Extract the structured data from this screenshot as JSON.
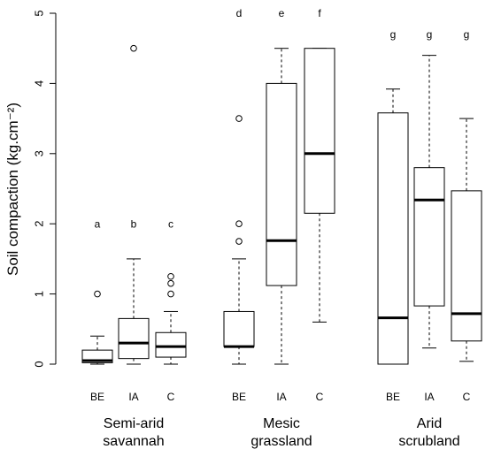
{
  "chart_data": {
    "type": "boxplot",
    "ylabel": "Soil compaction (kg.cm⁻²)",
    "ylim": [
      0,
      5
    ],
    "yticks": [
      "0",
      "1",
      "2",
      "3",
      "4",
      "5"
    ],
    "groups": [
      {
        "label_lines": [
          "Semi-arid",
          "savannah"
        ],
        "categories": [
          "BE",
          "IA",
          "C"
        ]
      },
      {
        "label_lines": [
          "Mesic",
          "grassland"
        ],
        "categories": [
          "BE",
          "IA",
          "C"
        ]
      },
      {
        "label_lines": [
          "Arid",
          "scrubland"
        ],
        "categories": [
          "BE",
          "IA",
          "C"
        ]
      }
    ],
    "boxes": [
      {
        "group": 0,
        "category": "BE",
        "letter": "a",
        "min": 0.0,
        "q1": 0.02,
        "median": 0.05,
        "q3": 0.2,
        "max": 0.4,
        "outliers": [
          1.0
        ]
      },
      {
        "group": 0,
        "category": "IA",
        "letter": "b",
        "min": 0.0,
        "q1": 0.08,
        "median": 0.3,
        "q3": 0.65,
        "max": 1.5,
        "outliers": [
          4.5
        ]
      },
      {
        "group": 0,
        "category": "C",
        "letter": "c",
        "min": 0.0,
        "q1": 0.1,
        "median": 0.25,
        "q3": 0.45,
        "max": 0.75,
        "outliers": [
          1.0,
          1.15,
          1.25
        ]
      },
      {
        "group": 1,
        "category": "BE",
        "letter": "d",
        "min": 0.0,
        "q1": 0.25,
        "median": 0.25,
        "q3": 0.75,
        "max": 1.5,
        "outliers": [
          1.75,
          2.0,
          3.5
        ]
      },
      {
        "group": 1,
        "category": "IA",
        "letter": "e",
        "min": 0.0,
        "q1": 1.12,
        "median": 1.76,
        "q3": 4.0,
        "max": 4.5,
        "outliers": []
      },
      {
        "group": 1,
        "category": "C",
        "letter": "f",
        "min": 0.6,
        "q1": 2.15,
        "median": 3.0,
        "q3": 4.5,
        "max": 4.5,
        "outliers": []
      },
      {
        "group": 2,
        "category": "BE",
        "letter": "g",
        "min": 0.0,
        "q1": 0.0,
        "median": 0.66,
        "q3": 3.58,
        "max": 3.92,
        "outliers": []
      },
      {
        "group": 2,
        "category": "IA",
        "letter": "g",
        "min": 0.23,
        "q1": 0.83,
        "median": 2.34,
        "q3": 2.8,
        "max": 4.4,
        "outliers": []
      },
      {
        "group": 2,
        "category": "C",
        "letter": "g",
        "min": 0.04,
        "q1": 0.33,
        "median": 0.72,
        "q3": 2.47,
        "max": 3.5,
        "outliers": []
      }
    ],
    "letter_levels": {
      "a": 2.0,
      "b": 2.0,
      "c": 2.0,
      "d": 5.0,
      "e": 5.0,
      "f": 5.0,
      "g": 4.7
    },
    "legend": "none",
    "grid": false
  }
}
